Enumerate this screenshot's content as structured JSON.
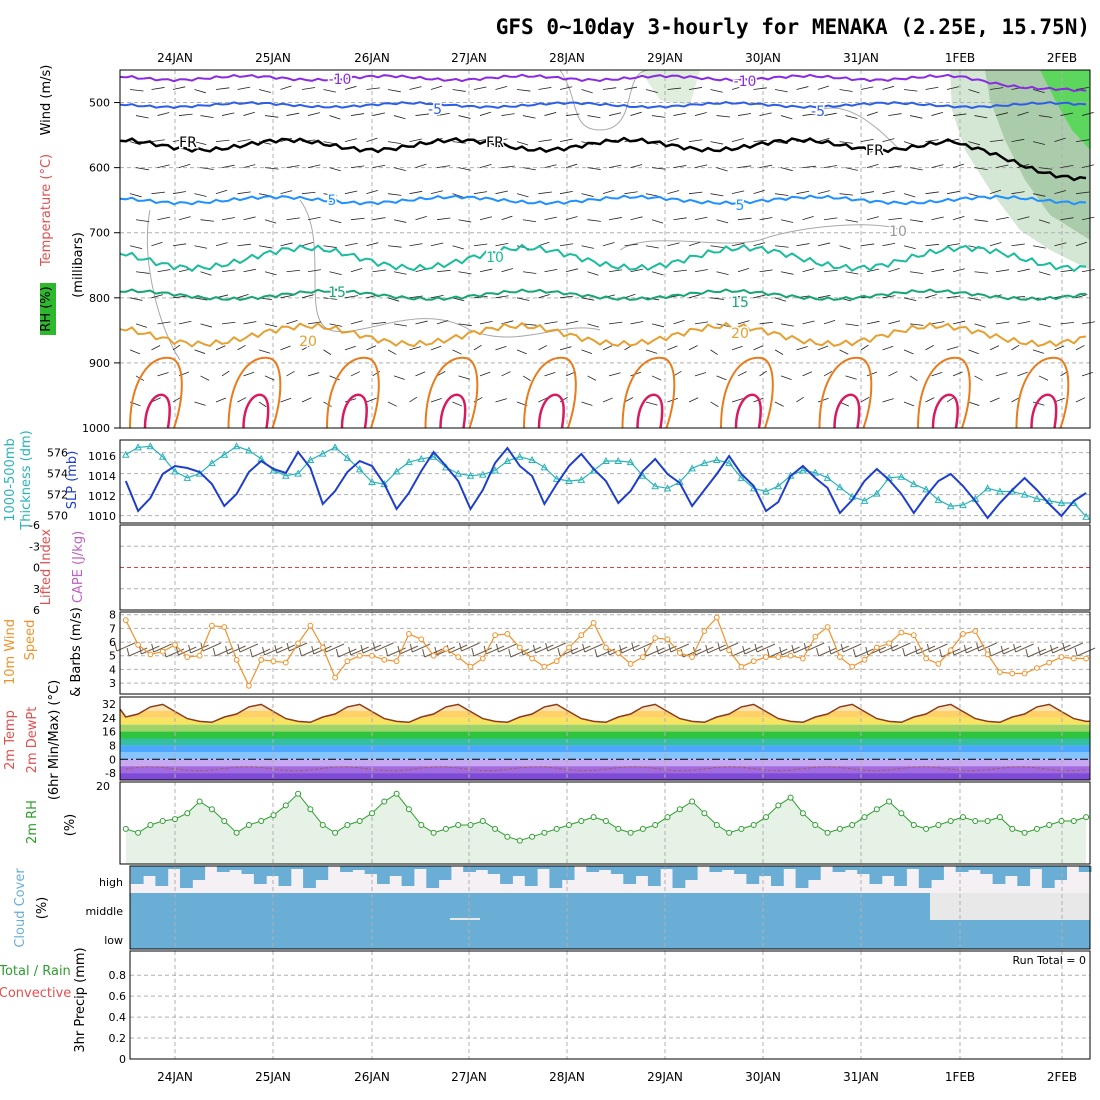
{
  "title": "GFS 0~10day 3-hourly for MENAKA (2.25E, 15.75N)",
  "dates": [
    "24JAN",
    "25JAN",
    "26JAN",
    "27JAN",
    "28JAN",
    "29JAN",
    "30JAN",
    "31JAN",
    "1FEB",
    "2FEB"
  ],
  "run_total": "Run Total = 0",
  "colors": {
    "isotherm_minus10": "#8a2be2",
    "isotherm_minus5": "#2d5fe6",
    "isotherm_fr": "#000000",
    "isotherm_5": "#1e90ff",
    "isotherm_10": "#1abc9c",
    "isotherm_15": "#17a673",
    "isotherm_20": "#e5a032",
    "isotherm_25": "#e87b1c",
    "isotherm_30": "#d81b60",
    "thickness": "#2ab3b8",
    "slp": "#1f3fc9",
    "wind10": "#f0922a",
    "barbs": "#6b5a4a",
    "rh": "#2e9d2e",
    "cloud": "#6aaed6",
    "zero_line": "#e04040"
  },
  "panels": {
    "upper": {
      "ylabels": [
        {
          "text": "Wind (m/s)",
          "color": "#000000"
        },
        {
          "text": "Temperature (°C)",
          "color": "#e05050"
        },
        {
          "text": "RH (%)",
          "color": "#000000"
        },
        {
          "text": "(millibars)",
          "color": "#000000"
        }
      ],
      "ticks": [
        "500",
        "600",
        "700",
        "800",
        "900",
        "1000"
      ],
      "contour_labels": {
        "m10": "-10",
        "m5": "-5",
        "fr": "FR",
        "p5": "5",
        "p10": "10",
        "p15": "15",
        "p20": "20",
        "rh10": "10"
      }
    },
    "thickness": {
      "ylabels": [
        {
          "text": "1000-500mb",
          "color": "#2ab3b8"
        },
        {
          "text": "Thickness (dm)",
          "color": "#2ab3b8"
        },
        {
          "text": "SLP (mb)",
          "color": "#1f3fc9"
        }
      ],
      "ticks_left": [
        "576",
        "574",
        "572",
        "570"
      ],
      "ticks_right": [
        "1016",
        "1014",
        "1012",
        "1010"
      ]
    },
    "cape": {
      "ylabels": [
        {
          "text": "Lifted Index",
          "color": "#e05050"
        },
        {
          "text": "CAPE (J/kg)",
          "color": "#c060c0"
        }
      ],
      "ticks": [
        "-6",
        "-3",
        "0",
        "3",
        "6"
      ]
    },
    "wind10": {
      "ylabels": [
        {
          "text": "10m Wind",
          "color": "#f0922a"
        },
        {
          "text": "Speed",
          "color": "#f0922a"
        },
        {
          "text": "& Barbs (m/s)",
          "color": "#000000"
        }
      ],
      "ticks": [
        "8",
        "7",
        "6",
        "5",
        "4",
        "3"
      ]
    },
    "temp": {
      "ylabels": [
        {
          "text": "2m Temp",
          "color": "#e05050"
        },
        {
          "text": "2m DewPt",
          "color": "#e05050"
        },
        {
          "text": "(6hr Min/Max) (°C)",
          "color": "#000000"
        }
      ],
      "ticks": [
        "32",
        "24",
        "16",
        "8",
        "0",
        "-8"
      ]
    },
    "rh": {
      "ylabels": [
        {
          "text": "2m RH",
          "color": "#2e9d2e"
        },
        {
          "text": "(%)",
          "color": "#000000"
        }
      ],
      "ticks": [
        "20"
      ]
    },
    "cloud": {
      "ylabels": [
        {
          "text": "Cloud Cover",
          "color": "#6aaed6"
        },
        {
          "text": "(%)",
          "color": "#000000"
        }
      ],
      "levels": [
        "high",
        "middle",
        "low"
      ]
    },
    "precip": {
      "ylabels": [
        {
          "text": "Total / Rain",
          "color": "#2e9d2e"
        },
        {
          "text": "Convective",
          "color": "#e05050"
        },
        {
          "text": "3hr Precip (mm)",
          "color": "#000000"
        }
      ],
      "ticks": [
        "0.8",
        "0.6",
        "0.4",
        "0.2",
        "0"
      ]
    }
  },
  "chart_data": [
    {
      "type": "line",
      "title": "",
      "panel": "1000-500mb Thickness (dm) / SLP (mb)",
      "x_unit": "3-hour steps from 23JAN 12Z",
      "series": [
        {
          "name": "1000-500mb Thickness (dm)",
          "values": [
            575.8,
            576.5,
            576.6,
            575.6,
            574.2,
            573.6,
            574,
            575,
            575.8,
            576.6,
            576.2,
            575.4,
            574.3,
            573.8,
            574,
            575.3,
            575.9,
            576.5,
            575.5,
            574.4,
            573.2,
            573,
            574.2,
            575.1,
            575.4,
            575.6,
            574.6,
            574,
            573.8,
            573.9,
            574.3,
            575.2,
            575.6,
            575.3,
            574.6,
            573.5,
            573.3,
            573.4,
            574.3,
            575.2,
            575.2,
            575.1,
            573.8,
            572.8,
            572.6,
            573.2,
            574.5,
            575,
            575.3,
            575,
            573.6,
            572.6,
            572.3,
            572.8,
            573.8,
            574.3,
            574.1,
            573.6,
            572.7,
            571.8,
            571.4,
            572.1,
            573.6,
            573.7,
            573,
            572.5,
            571.5,
            570.9,
            571,
            571.6,
            572.6,
            572.3,
            572.3,
            572,
            571.6,
            571.4,
            571.2,
            571.2,
            569.9
          ]
        },
        {
          "name": "SLP (mb)",
          "values": [
            1013.5,
            1010.5,
            1011.8,
            1014.2,
            1015,
            1014.8,
            1014.4,
            1013.2,
            1011,
            1012.2,
            1014.4,
            1015.5,
            1014.7,
            1014.3,
            1016.4,
            1014.8,
            1011.2,
            1012.5,
            1014.4,
            1015.5,
            1015,
            1013.2,
            1010.7,
            1012.3,
            1014.5,
            1016.4,
            1015,
            1013.5,
            1010.7,
            1012.6,
            1015.3,
            1016.8,
            1015,
            1014,
            1011.2,
            1013.2,
            1015,
            1016.2,
            1014.7,
            1013.5,
            1011.3,
            1012.5,
            1014.5,
            1015.7,
            1014.2,
            1013.3,
            1011,
            1012.6,
            1014.2,
            1016,
            1014.2,
            1013,
            1010.5,
            1011.4,
            1014,
            1015,
            1013.8,
            1012.8,
            1010.3,
            1011.6,
            1013.5,
            1014.7,
            1013.6,
            1012.2,
            1010.3,
            1012,
            1013.5,
            1014.2,
            1013,
            1011.5,
            1009.8,
            1011.3,
            1012.6,
            1013.8,
            1012.6,
            1011.2,
            1010,
            1011.5,
            1012.3
          ]
        }
      ]
    },
    {
      "type": "line",
      "title": "",
      "panel": "10m Wind Speed (m/s)",
      "series": [
        {
          "name": "10m Wind Speed (m/s)",
          "values": [
            7.6,
            5.8,
            5.1,
            5.3,
            5.8,
            4.9,
            5,
            7.2,
            7.1,
            4.7,
            2.8,
            4.7,
            4.6,
            4.5,
            5.9,
            7.2,
            5.6,
            3.4,
            4.6,
            5,
            5,
            4.7,
            4.6,
            6.6,
            6.2,
            5,
            5.5,
            4.9,
            4.2,
            4.8,
            6.5,
            6.6,
            5.6,
            4.8,
            4.2,
            4.6,
            5.6,
            6.5,
            7.4,
            5.6,
            5.2,
            4.4,
            4.9,
            6.3,
            6.2,
            5.2,
            4.9,
            6.8,
            7.8,
            5.4,
            4.2,
            4.6,
            4.9,
            4.9,
            5,
            4.8,
            6.4,
            7.1,
            4.9,
            4.2,
            4.7,
            5.6,
            5.9,
            6.7,
            6.5,
            4.8,
            4.4,
            5.4,
            6.6,
            6.8,
            5.1,
            3.8,
            3.7,
            3.7,
            4.1,
            4.5,
            4.9,
            4.8,
            4.8
          ]
        }
      ]
    },
    {
      "type": "line",
      "title": "",
      "panel": "2m RH (%)",
      "series": [
        {
          "name": "2m RH (%)",
          "values": [
            9,
            8,
            10,
            11,
            11.5,
            13,
            16,
            14,
            11,
            8,
            10,
            11,
            12.5,
            15,
            18,
            14,
            10,
            8,
            10,
            11,
            13,
            16,
            18,
            14,
            10,
            8,
            9,
            10,
            10,
            11,
            9,
            7,
            6,
            7,
            8,
            9,
            10,
            11,
            12,
            11,
            9,
            8,
            9,
            10,
            12,
            14,
            16,
            13,
            10,
            8,
            9,
            10,
            12,
            15,
            17,
            13,
            10,
            8,
            9,
            10,
            12,
            14,
            16,
            13,
            10,
            9,
            10,
            11,
            12,
            11,
            11,
            12,
            9,
            8,
            9,
            10,
            11,
            11,
            12
          ]
        }
      ]
    },
    {
      "type": "area",
      "title": "",
      "panel": "3hr Precip (mm)",
      "ylim": [
        0,
        1
      ],
      "series": [
        {
          "name": "Total / Rain",
          "values": []
        },
        {
          "name": "Convective",
          "values": []
        }
      ]
    }
  ]
}
